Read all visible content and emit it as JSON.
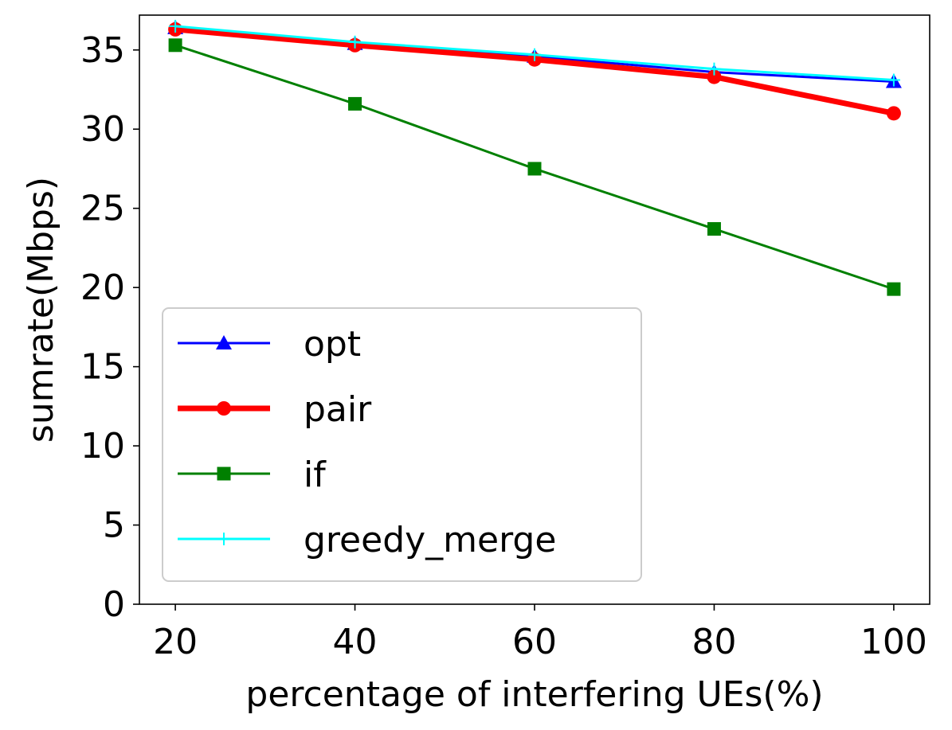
{
  "chart_data": {
    "type": "line",
    "xlabel": "percentage of interfering UEs(%)",
    "ylabel": "sumrate(Mbps)",
    "x": [
      20,
      40,
      60,
      80,
      100
    ],
    "xticks": [
      "20",
      "40",
      "60",
      "80",
      "100"
    ],
    "yticks": [
      "0",
      "5",
      "10",
      "15",
      "20",
      "25",
      "30",
      "35"
    ],
    "xlim": [
      16,
      104
    ],
    "ylim": [
      0,
      37.2
    ],
    "grid": false,
    "legend_position": "lower-left",
    "series": [
      {
        "name": "opt",
        "values": [
          36.4,
          35.4,
          34.6,
          33.6,
          33.0
        ],
        "color": "#0000ff",
        "marker": "triangle"
      },
      {
        "name": "pair",
        "values": [
          36.3,
          35.3,
          34.4,
          33.3,
          31.0
        ],
        "color": "#ff0000",
        "marker": "circle"
      },
      {
        "name": "if",
        "values": [
          35.3,
          31.6,
          27.5,
          23.7,
          19.9
        ],
        "color": "#008000",
        "marker": "square"
      },
      {
        "name": "greedy_merge",
        "values": [
          36.5,
          35.5,
          34.7,
          33.8,
          33.1
        ],
        "color": "#00ffff",
        "marker": "plus"
      }
    ]
  }
}
